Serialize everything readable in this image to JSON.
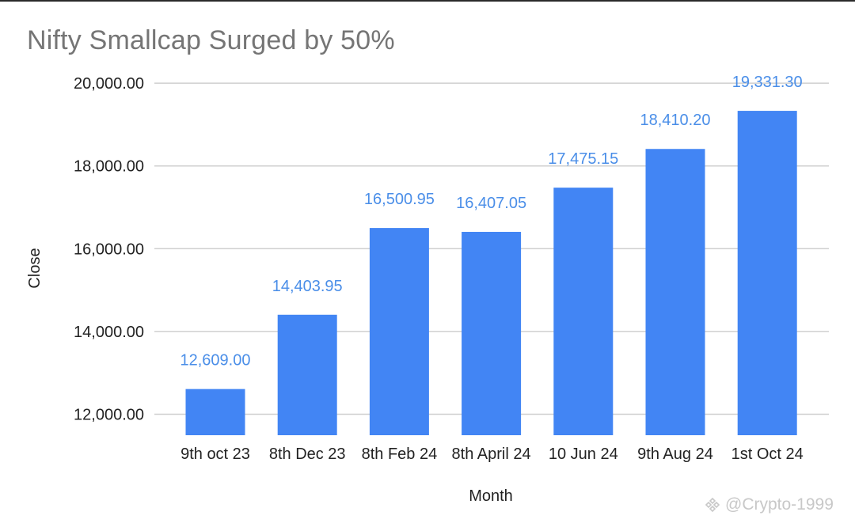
{
  "chart_data": {
    "type": "bar",
    "title": "Nifty Smallcap Surged by 50%",
    "xlabel": "Month",
    "ylabel": "Close",
    "categories": [
      "9th oct 23",
      "8th Dec 23",
      "8th Feb 24",
      "8th April 24",
      "10 Jun 24",
      "9th Aug 24",
      "1st Oct 24"
    ],
    "values": [
      12609.0,
      14403.95,
      16500.95,
      16407.05,
      17475.15,
      18410.2,
      19331.3
    ],
    "data_labels": [
      "12,609.00",
      "14,403.95",
      "16,500.95",
      "16,407.05",
      "17,475.15",
      "18,410.20",
      "19,331.30"
    ],
    "ylim": [
      11500,
      20000
    ],
    "yticks": [
      12000,
      14000,
      16000,
      18000,
      20000
    ],
    "ytick_labels": [
      "12,000.00",
      "14,000.00",
      "16,000.00",
      "18,000.00",
      "20,000.00"
    ],
    "grid": true,
    "legend": "none",
    "colors": {
      "bar": "#4285f4",
      "data_label": "#4a8ee8",
      "title": "#757575",
      "grid": "#cfcfcf"
    }
  },
  "watermark": {
    "text": "@Crypto-1999",
    "icon": "binance-logo-icon"
  }
}
